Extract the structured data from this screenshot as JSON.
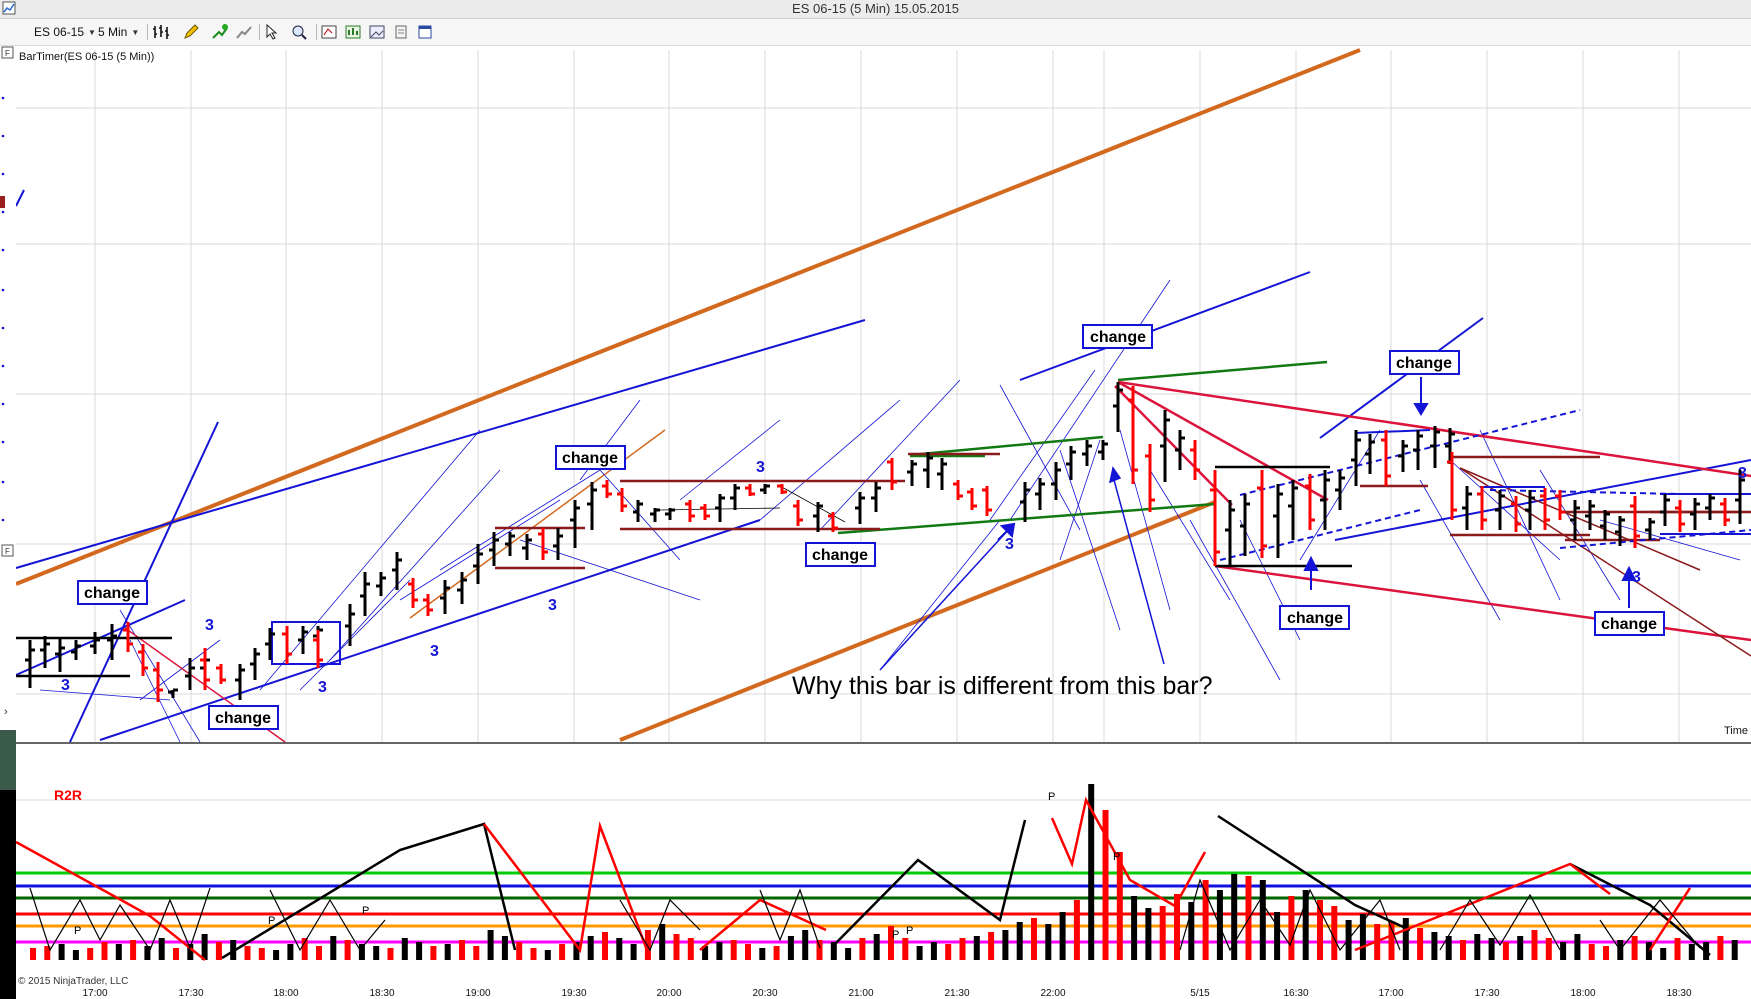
{
  "window": {
    "title": "ES 06-15 (5 Min)  15.05.2015"
  },
  "toolbar": {
    "instrument": "ES 06-15",
    "interval": "5 Min",
    "icons": [
      "bar-type-icon",
      "pencil-draw-icon",
      "indicator-add-icon",
      "strategy-icon",
      "cursor-icon",
      "zoom-icon",
      "data-box-icon",
      "chart-trader-icon",
      "image-icon",
      "properties-icon",
      "window-icon"
    ]
  },
  "price_panel": {
    "indicator_label": "BarTimer(ES 06-15 (5 Min))",
    "time_axis_label": "Time",
    "change_labels": [
      "change",
      "change",
      "change",
      "change",
      "change",
      "change",
      "change",
      "change"
    ],
    "count_labels": [
      "3",
      "3",
      "3",
      "3",
      "3",
      "3",
      "3",
      "3",
      "3"
    ],
    "annotation": "Why this bar is different from this bar?"
  },
  "lower_panel": {
    "indicator_label": "R2R",
    "copyright": "© 2015 NinjaTrader, LLC",
    "x_ticks": [
      "17:00",
      "17:30",
      "18:00",
      "18:30",
      "19:00",
      "19:30",
      "20:00",
      "20:30",
      "21:00",
      "21:30",
      "22:00",
      "5/15",
      "16:30",
      "17:00",
      "17:30",
      "18:00",
      "18:30"
    ],
    "marker": "P",
    "colors": {
      "green": "#00cc00",
      "blue": "#1010e0",
      "darkgreen": "#006600",
      "red": "#ff0000",
      "orange": "#ff9900",
      "magenta": "#ff00ff",
      "up": "#000000",
      "down": "#ff0000"
    }
  },
  "colors": {
    "trendline_blue": "#1414d6",
    "channel_orange": "#d2691e",
    "box_brown": "#8b1a1a",
    "green_line": "#137a13",
    "down_line": "#dc143c"
  }
}
